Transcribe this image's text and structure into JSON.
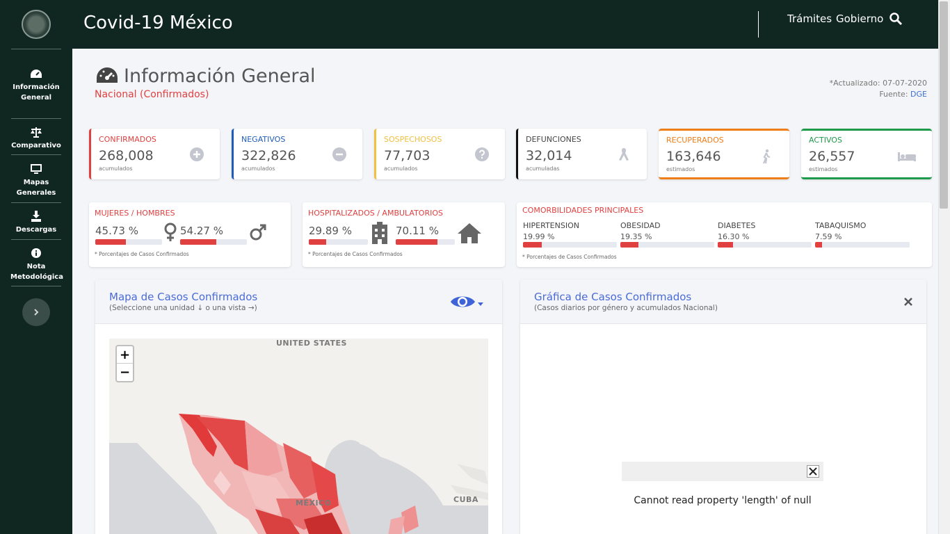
{
  "app": {
    "title": "Covid-19 México"
  },
  "topnav": {
    "tramites": "Trámites",
    "gobierno": "Gobierno"
  },
  "sidebar": {
    "items": [
      {
        "label": "Información General",
        "icon": "speedometer-icon"
      },
      {
        "label": "Comparativo",
        "icon": "balance-scale-icon"
      },
      {
        "label": "Mapas Generales",
        "icon": "monitor-icon"
      },
      {
        "label": "Descargas",
        "icon": "download-icon"
      },
      {
        "label": "Nota Metodológica",
        "icon": "info-icon"
      }
    ]
  },
  "header": {
    "title": "Información General",
    "subtitle": "Nacional (Confirmados)",
    "updated": "*Actualizado: 07-07-2020",
    "source_prefix": "Fuente:",
    "source": "DGE"
  },
  "cards": [
    {
      "label": "CONFIRMADOS",
      "value": "268,008",
      "note": "acumulados",
      "color": "#e04040",
      "icon": "plus-circle-icon"
    },
    {
      "label": "NEGATIVOS",
      "value": "322,826",
      "note": "acumulados",
      "color": "#1f5cb8",
      "icon": "minus-circle-icon"
    },
    {
      "label": "SOSPECHOSOS",
      "value": "77,703",
      "note": "acumulados",
      "color": "#f0c040",
      "icon": "question-circle-icon"
    },
    {
      "label": "DEFUNCIONES",
      "value": "32,014",
      "note": "acumuladas",
      "color": "#111111",
      "icon": "ribbon-icon"
    },
    {
      "label": "RECUPERADOS",
      "value": "163,646",
      "note": "estimados",
      "color": "#ef7d18",
      "icon": "walking-icon"
    },
    {
      "label": "ACTIVOS",
      "value": "26,557",
      "note": "estimados",
      "color": "#1e9b4a",
      "icon": "bed-icon"
    }
  ],
  "gender": {
    "title": "MUJERES / HOMBRES",
    "women_pct": "45.73 %",
    "men_pct": "54.27 %",
    "women_fill": 45.73,
    "men_fill": 54.27,
    "footnote": "* Porcentajes  de Casos Confirmados"
  },
  "hosp": {
    "title": "HOSPITALIZADOS / AMBULATORIOS",
    "hosp_pct": "29.89 %",
    "amb_pct": "70.11 %",
    "hosp_fill": 29.89,
    "amb_fill": 70.11,
    "footnote": "* Porcentajes  de Casos Confirmados"
  },
  "comorb": {
    "title": "COMORBILIDADES PRINCIPALES",
    "items": [
      {
        "label": "HIPERTENSION",
        "pct": "19.99 %",
        "fill": 19.99
      },
      {
        "label": "OBESIDAD",
        "pct": "19.35 %",
        "fill": 19.35
      },
      {
        "label": "DIABETES",
        "pct": "16.30 %",
        "fill": 16.3
      },
      {
        "label": "TABAQUISMO",
        "pct": "7.59 %",
        "fill": 7.59
      }
    ],
    "footnote": "* Porcentajes  de Casos Confirmados"
  },
  "map": {
    "title": "Mapa de Casos Confirmados",
    "subtitle": "(Seleccione una unidad ↓ o una vista →)",
    "zoom_in": "+",
    "zoom_out": "−",
    "labels": {
      "us": "UNITED STATES",
      "mx": "MÉXICO",
      "cuba": "CUBA"
    }
  },
  "chart": {
    "title": "Gráfica de Casos Confirmados",
    "subtitle": "(Casos diarios por género y acumulados Nacional)",
    "error": "Cannot read property 'length' of null"
  }
}
